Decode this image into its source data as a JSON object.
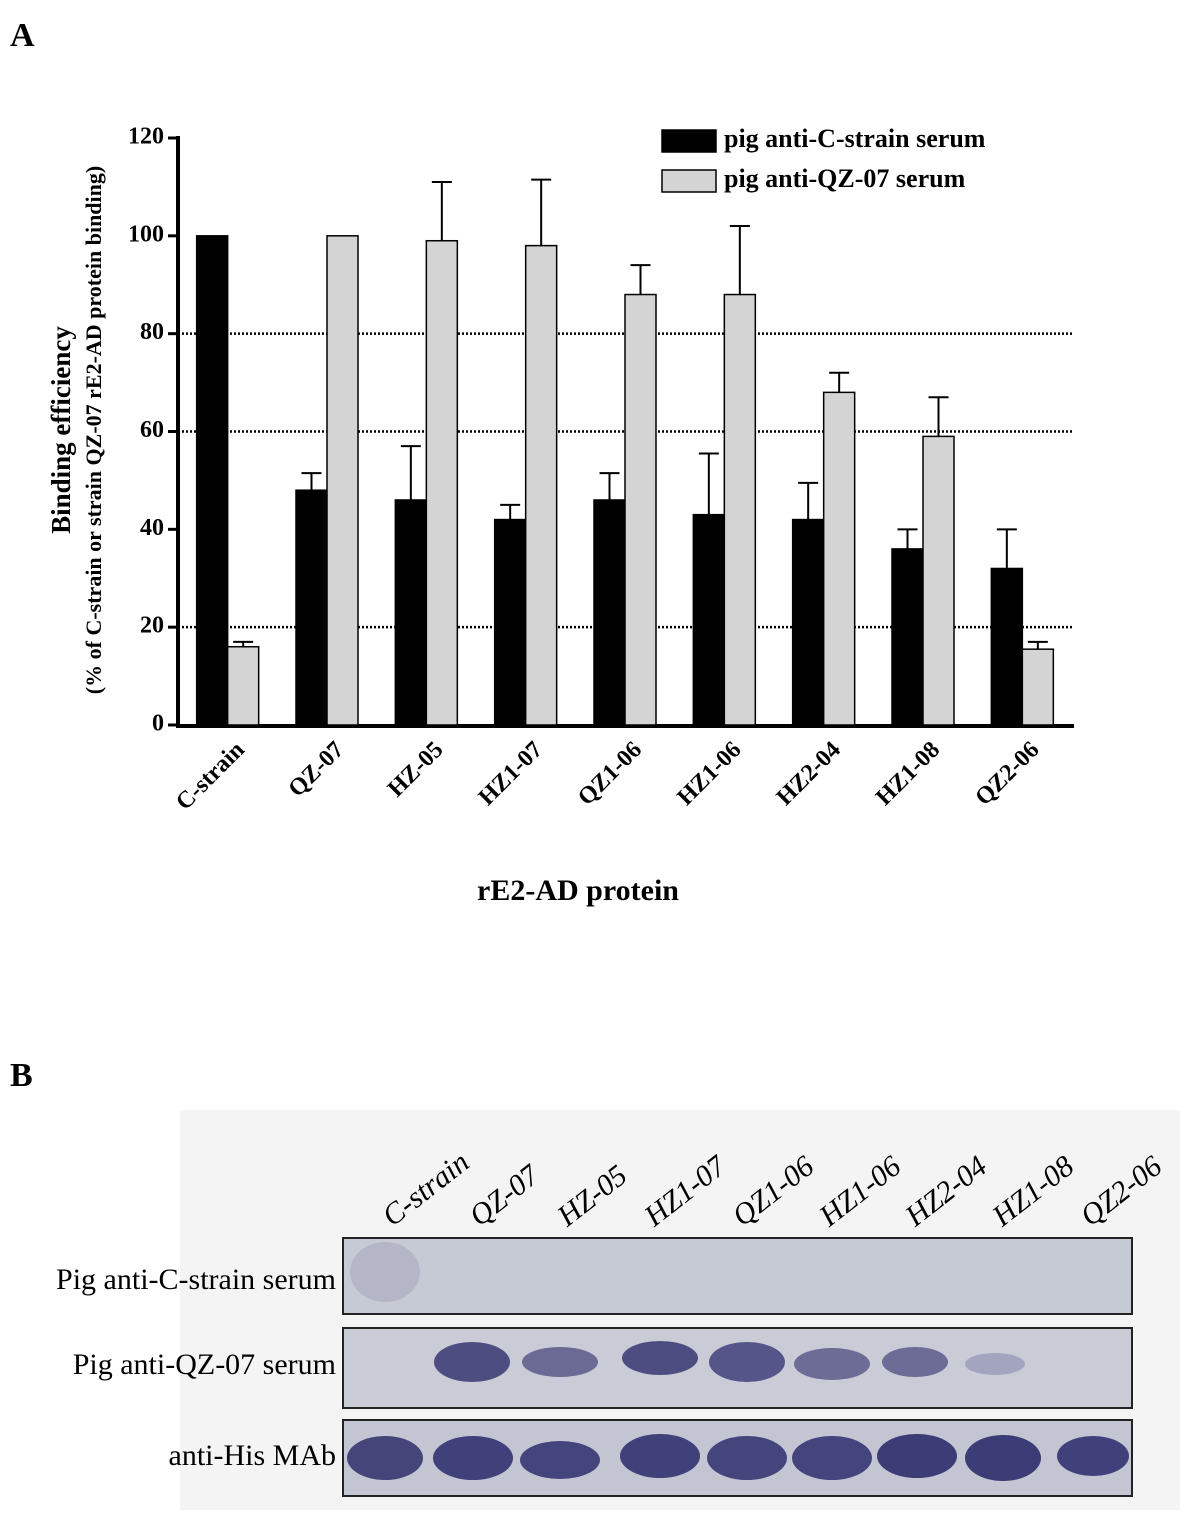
{
  "chart_data": {
    "type": "bar",
    "panel_label": "A",
    "ylabel": [
      "Binding efficiency",
      "(% of C-strain or strain QZ-07 rE2-AD protein binding)"
    ],
    "xlabel": "rE2-AD protein",
    "categories": [
      "C-strain",
      "QZ-07",
      "HZ-05",
      "HZ1-07",
      "QZ1-06",
      "HZ1-06",
      "HZ2-04",
      "HZ1-08",
      "QZ2-06"
    ],
    "series": [
      {
        "name": "pig anti-C-strain serum",
        "color": "#000000",
        "values": [
          100,
          48,
          46,
          42,
          46,
          43,
          42,
          36,
          32
        ],
        "errors": [
          null,
          3.5,
          11,
          3,
          5.5,
          12.5,
          7.5,
          4,
          8
        ]
      },
      {
        "name": "pig anti-QZ-07 serum",
        "color": "#d4d4d4",
        "values": [
          16,
          100,
          99,
          98,
          88,
          88,
          68,
          59,
          15.5
        ],
        "errors": [
          1,
          null,
          12,
          13.5,
          6,
          14,
          4,
          8,
          1.5
        ]
      }
    ],
    "ylim": [
      0,
      120
    ],
    "yticks": [
      0,
      20,
      40,
      60,
      80,
      100,
      120
    ],
    "grid_lines": [
      20,
      60,
      80
    ],
    "legend": "upper right"
  },
  "blot": {
    "panel_label": "B",
    "lanes": [
      "C-strain",
      "QZ-07",
      "HZ-05",
      "HZ1-07",
      "QZ1-06",
      "HZ1-06",
      "HZ2-04",
      "HZ1-08",
      "QZ2-06"
    ],
    "rows": [
      "Pig anti-C-strain serum",
      "Pig anti-QZ-07 serum",
      "anti-His MAb"
    ]
  }
}
